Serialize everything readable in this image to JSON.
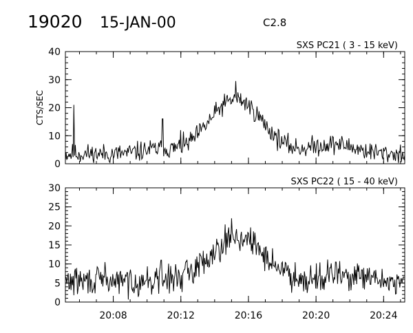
{
  "header": {
    "event_number": "19020",
    "date": "15-JAN-00",
    "flare_class": "C2.8"
  },
  "chart_data": [
    {
      "type": "line",
      "title": "SXS PC21  (  3 - 15 keV)",
      "ylabel": "CTS/SEC",
      "xlim": [
        "20:05:10",
        "20:25:15"
      ],
      "ylim": [
        0,
        40
      ],
      "yticks": [
        0,
        10,
        20,
        30,
        40
      ],
      "minor_y_step": 2,
      "xticks": [
        "20:08",
        "20:12",
        "20:16",
        "20:20",
        "20:24"
      ],
      "x_labels_shown": false,
      "grid": false,
      "series": [
        {
          "baseline": 3.5,
          "noise": 2.2,
          "seed": 11,
          "peak": {
            "time": "20:15:15",
            "amplitude": 19.5,
            "width_min": 1.55
          },
          "bumps": [
            {
              "time": "20:10:30",
              "amplitude": 1.5,
              "width_min": 0.9
            },
            {
              "time": "20:21:00",
              "amplitude": 3.5,
              "width_min": 1.3
            }
          ],
          "spikes": [
            {
              "time": "20:05:40",
              "value": 21
            },
            {
              "time": "20:10:55",
              "value": 16
            },
            {
              "time": "20:12:00",
              "value": 12
            },
            {
              "time": "20:15:15",
              "value": 29.5
            }
          ]
        }
      ]
    },
    {
      "type": "line",
      "title": "SXS PC22  ( 15 - 40 keV)",
      "ylabel": "",
      "xlim": [
        "20:05:10",
        "20:25:15"
      ],
      "ylim": [
        0,
        30
      ],
      "yticks": [
        0,
        5,
        10,
        15,
        20,
        25,
        30
      ],
      "minor_y_step": 1,
      "xticks": [
        "20:08",
        "20:12",
        "20:16",
        "20:20",
        "20:24"
      ],
      "x_labels_shown": true,
      "grid": false,
      "series": [
        {
          "baseline": 5.5,
          "noise": 2.3,
          "seed": 29,
          "peak": {
            "time": "20:15:20",
            "amplitude": 11.5,
            "width_min": 1.6
          },
          "bumps": [
            {
              "time": "20:21:20",
              "amplitude": 1.5,
              "width_min": 1.2
            }
          ],
          "spikes": [
            {
              "time": "20:07:30",
              "value": 10.5
            },
            {
              "time": "20:10:50",
              "value": 11
            },
            {
              "time": "20:15:00",
              "value": 22
            },
            {
              "time": "20:21:10",
              "value": 10.5
            }
          ]
        }
      ]
    }
  ]
}
